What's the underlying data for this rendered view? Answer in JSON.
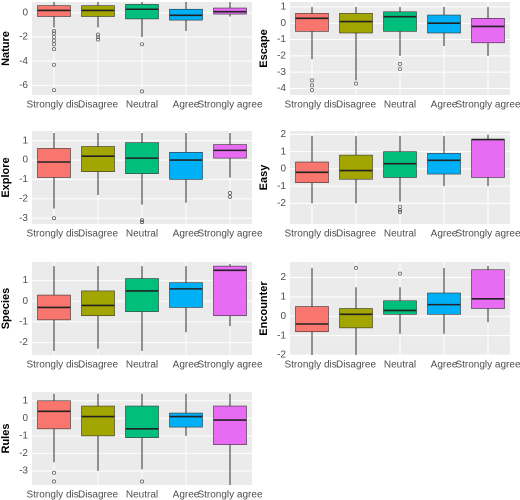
{
  "chart_data": [
    {
      "type": "box",
      "y_label": "Nature",
      "categories": [
        "Strongly dis.",
        "Disagree",
        "Neutral",
        "Agree",
        "Strongly agree"
      ],
      "colors": [
        "#F8766D",
        "#A3A500",
        "#00BF7D",
        "#00B0F6",
        "#E76BF3"
      ],
      "ylim": [
        -6.8,
        0.9
      ],
      "yticks": [
        0,
        -2,
        -4,
        -6
      ],
      "boxes": [
        {
          "low": -1.2,
          "q1": -0.3,
          "median": 0.2,
          "q3": 0.6,
          "high": 0.9,
          "outliers": [
            -1.5,
            -1.7,
            -2,
            -2.3,
            -2.6,
            -3,
            -4.3,
            -6.4
          ]
        },
        {
          "low": -1.2,
          "q1": -0.3,
          "median": 0.2,
          "q3": 0.6,
          "high": 0.9,
          "outliers": [
            -1.8,
            -2,
            -2.2
          ]
        },
        {
          "low": -2,
          "q1": -0.5,
          "median": 0.3,
          "q3": 0.7,
          "high": 0.9,
          "outliers": [
            -2.6,
            -6.5
          ]
        },
        {
          "low": -1.5,
          "q1": -0.6,
          "median": -0.2,
          "q3": 0.3,
          "high": 0.9,
          "outliers": []
        },
        {
          "low": -0.3,
          "q1": -0.1,
          "median": 0.1,
          "q3": 0.4,
          "high": 0.9,
          "outliers": []
        }
      ]
    },
    {
      "type": "box",
      "y_label": "Escape",
      "categories": [
        "Strongly dis.",
        "Disagree",
        "Neutral",
        "Agree",
        "Strongly agree"
      ],
      "colors": [
        "#F8766D",
        "#A3A500",
        "#00BF7D",
        "#00B0F6",
        "#E76BF3"
      ],
      "ylim": [
        -4.4,
        1.3
      ],
      "yticks": [
        1,
        0,
        -1,
        -2,
        -3,
        -4
      ],
      "boxes": [
        {
          "low": -2.2,
          "q1": -0.5,
          "median": 0.3,
          "q3": 0.6,
          "high": 1,
          "outliers": [
            -3.5,
            -3.8,
            -4.1
          ]
        },
        {
          "low": -3.5,
          "q1": -0.6,
          "median": 0.1,
          "q3": 0.6,
          "high": 1,
          "outliers": [
            -3.7
          ]
        },
        {
          "low": -2,
          "q1": -0.5,
          "median": 0.4,
          "q3": 0.7,
          "high": 1,
          "outliers": [
            -2.5,
            -2.8
          ]
        },
        {
          "low": -1.4,
          "q1": -0.6,
          "median": 0,
          "q3": 0.5,
          "high": 1,
          "outliers": []
        },
        {
          "low": -2,
          "q1": -1.2,
          "median": -0.2,
          "q3": 0.3,
          "high": 1,
          "outliers": []
        }
      ]
    },
    {
      "type": "box",
      "y_label": "Explore",
      "categories": [
        "Strongly dis.",
        "Disagree",
        "Neutral",
        "Agree",
        "Strongly agree"
      ],
      "colors": [
        "#F8766D",
        "#A3A500",
        "#00BF7D",
        "#00B0F6",
        "#E76BF3"
      ],
      "ylim": [
        -3.3,
        1.5
      ],
      "yticks": [
        1,
        0,
        -1,
        -2,
        -3
      ],
      "boxes": [
        {
          "low": -2.5,
          "q1": -0.9,
          "median": -0.1,
          "q3": 0.6,
          "high": 1.4,
          "outliers": [
            -3
          ]
        },
        {
          "low": -1.8,
          "q1": -0.6,
          "median": 0.2,
          "q3": 0.7,
          "high": 1.4,
          "outliers": []
        },
        {
          "low": -2.3,
          "q1": -0.7,
          "median": 0.1,
          "q3": 0.9,
          "high": 1.4,
          "outliers": [
            -3.1,
            -3.2
          ]
        },
        {
          "low": -2.2,
          "q1": -1,
          "median": 0,
          "q3": 0.4,
          "high": 1.4,
          "outliers": []
        },
        {
          "low": -0.9,
          "q1": 0.1,
          "median": 0.5,
          "q3": 0.8,
          "high": 1.4,
          "outliers": [
            -1.7,
            -1.9
          ]
        }
      ]
    },
    {
      "type": "box",
      "y_label": "Easy",
      "categories": [
        "Strongly dis.",
        "Disagree",
        "Neutral",
        "Agree",
        "Strongly agree"
      ],
      "colors": [
        "#F8766D",
        "#A3A500",
        "#00BF7D",
        "#00B0F6",
        "#E76BF3"
      ],
      "ylim": [
        -3.2,
        2.2
      ],
      "yticks": [
        2,
        1,
        0,
        -1,
        -2
      ],
      "boxes": [
        {
          "low": -2,
          "q1": -0.8,
          "median": -0.2,
          "q3": 0.4,
          "high": 1.9,
          "outliers": []
        },
        {
          "low": -2,
          "q1": -0.6,
          "median": -0.1,
          "q3": 0.8,
          "high": 1.9,
          "outliers": []
        },
        {
          "low": -1.9,
          "q1": -0.5,
          "median": 0.3,
          "q3": 1,
          "high": 1.9,
          "outliers": [
            -2.2,
            -2.4,
            -2.5
          ]
        },
        {
          "low": -1,
          "q1": -0.3,
          "median": 0.5,
          "q3": 0.9,
          "high": 1.9,
          "outliers": []
        },
        {
          "low": -1,
          "q1": -0.5,
          "median": 1.7,
          "q3": 1.7,
          "high": 2,
          "outliers": []
        }
      ]
    },
    {
      "type": "box",
      "y_label": "Species",
      "categories": [
        "Strongly dis.",
        "Disagree",
        "Neutral",
        "Agree",
        "Strongly agree"
      ],
      "colors": [
        "#F8766D",
        "#A3A500",
        "#00BF7D",
        "#00B0F6",
        "#E76BF3"
      ],
      "ylim": [
        -2.6,
        1.9
      ],
      "yticks": [
        1,
        0,
        -1,
        -2
      ],
      "boxes": [
        {
          "low": -2.4,
          "q1": -0.9,
          "median": -0.3,
          "q3": 0.3,
          "high": 1.7,
          "outliers": []
        },
        {
          "low": -2.3,
          "q1": -0.7,
          "median": -0.2,
          "q3": 0.5,
          "high": 1.7,
          "outliers": []
        },
        {
          "low": -2.4,
          "q1": -0.5,
          "median": 0.5,
          "q3": 1.1,
          "high": 1.7,
          "outliers": []
        },
        {
          "low": -1.5,
          "q1": -0.3,
          "median": 0.6,
          "q3": 0.9,
          "high": 1.7,
          "outliers": []
        },
        {
          "low": -1.2,
          "q1": -0.7,
          "median": 1.5,
          "q3": 1.7,
          "high": 1.8,
          "outliers": []
        }
      ]
    },
    {
      "type": "box",
      "y_label": "Encounter",
      "categories": [
        "Strongly dis.",
        "Disagree",
        "Neutral",
        "Agree",
        "Strongly agree"
      ],
      "colors": [
        "#F8766D",
        "#A3A500",
        "#00BF7D",
        "#00B0F6",
        "#E76BF3"
      ],
      "ylim": [
        -2.0,
        2.8
      ],
      "yticks": [
        2,
        1,
        0,
        -1,
        -2
      ],
      "boxes": [
        {
          "low": -2,
          "q1": -0.8,
          "median": -0.4,
          "q3": 0.5,
          "high": 2.5,
          "outliers": []
        },
        {
          "low": -2,
          "q1": -0.6,
          "median": 0.1,
          "q3": 0.4,
          "high": 1.5,
          "outliers": [
            2.5
          ]
        },
        {
          "low": -0.9,
          "q1": 0.1,
          "median": 0.3,
          "q3": 0.8,
          "high": 1.5,
          "outliers": [
            2.2
          ]
        },
        {
          "low": -0.9,
          "q1": 0.1,
          "median": 0.6,
          "q3": 1.2,
          "high": 2.5,
          "outliers": []
        },
        {
          "low": -0.3,
          "q1": 0.4,
          "median": 0.9,
          "q3": 2.4,
          "high": 2.6,
          "outliers": []
        }
      ]
    },
    {
      "type": "box",
      "y_label": "Rules",
      "categories": [
        "Strongly dis.",
        "Disagree",
        "Neutral",
        "Agree",
        "Strongly agree"
      ],
      "colors": [
        "#F8766D",
        "#A3A500",
        "#00BF7D",
        "#00B0F6",
        "#E76BF3"
      ],
      "ylim": [
        -3.8,
        1.5
      ],
      "yticks": [
        1,
        0,
        -1,
        -2,
        -3
      ],
      "boxes": [
        {
          "low": -2.5,
          "q1": -0.6,
          "median": 0.4,
          "q3": 1,
          "high": 1.4,
          "outliers": [
            -3.1,
            -3.6
          ]
        },
        {
          "low": -3,
          "q1": -1,
          "median": 0.1,
          "q3": 0.7,
          "high": 1.4,
          "outliers": []
        },
        {
          "low": -2.9,
          "q1": -1.1,
          "median": -0.6,
          "q3": 0.7,
          "high": 1.4,
          "outliers": [
            -3.6
          ]
        },
        {
          "low": -1,
          "q1": -0.5,
          "median": 0.1,
          "q3": 0.3,
          "high": 1.4,
          "outliers": []
        },
        {
          "low": -3.8,
          "q1": -1.5,
          "median": -0.1,
          "q3": 0.7,
          "high": 1.4,
          "outliers": []
        }
      ]
    }
  ]
}
